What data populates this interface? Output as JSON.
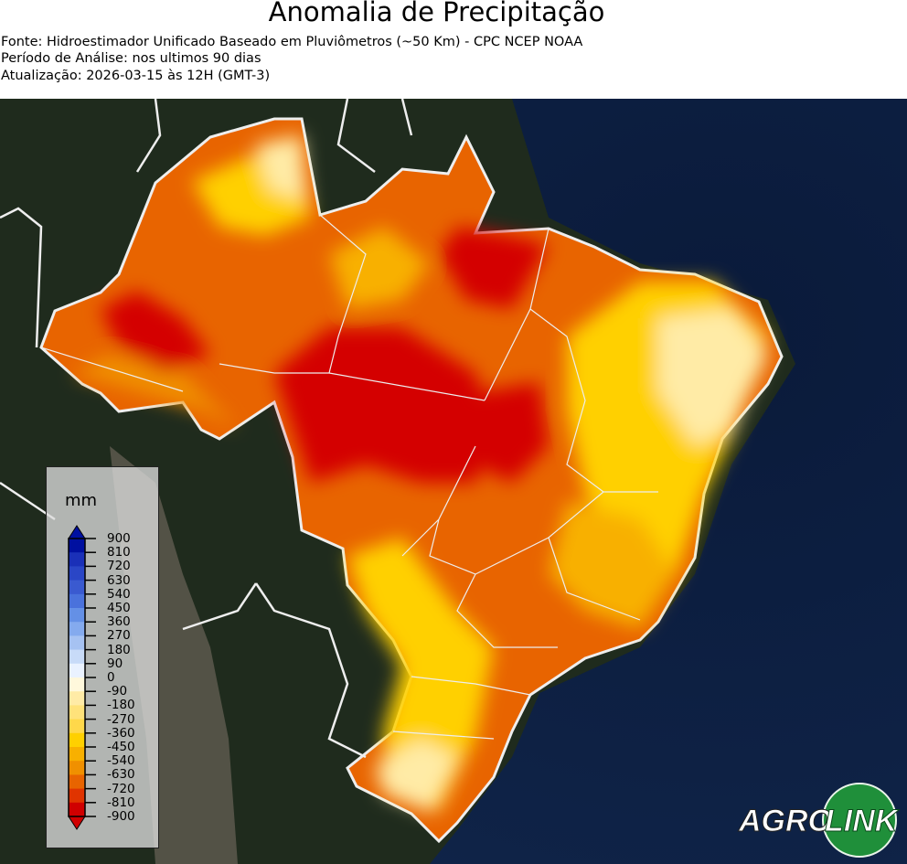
{
  "header": {
    "title": "Anomalia de Precipitação",
    "source": "Fonte: Hidroestimador Unificado Baseado em Pluviômetros (~50 Km) - CPC NCEP NOAA",
    "period": "Período de Análise: nos ultimos 90 dias",
    "updated": "Atualização: 2026-03-15 às 12H (GMT-3)"
  },
  "legend": {
    "unit": "mm",
    "ticks": [
      "900",
      "810",
      "720",
      "630",
      "540",
      "450",
      "360",
      "270",
      "180",
      "90",
      "0",
      "-90",
      "-180",
      "-270",
      "-360",
      "-450",
      "-540",
      "-630",
      "-720",
      "-810",
      "-900"
    ],
    "colors": [
      "#0010a0",
      "#1a30b8",
      "#2a46c6",
      "#3a5ad0",
      "#4a72dc",
      "#6490e6",
      "#84aaee",
      "#a6c2f2",
      "#c8dbf8",
      "#eaf2ff",
      "#fff8dc",
      "#ffeba6",
      "#ffe27a",
      "#ffd84a",
      "#ffd000",
      "#f8b000",
      "#f09000",
      "#e86400",
      "#e03400",
      "#d00000"
    ]
  },
  "logo": {
    "text_left": "AGRO",
    "text_right": "LINK"
  },
  "map_colors": {
    "ocean": "#0c1e3a",
    "land": "#1e2a1c",
    "red": "#d40000",
    "orange": "#e86400",
    "amber": "#f09000",
    "yellow": "#ffd000",
    "pale": "#ffeba6"
  }
}
